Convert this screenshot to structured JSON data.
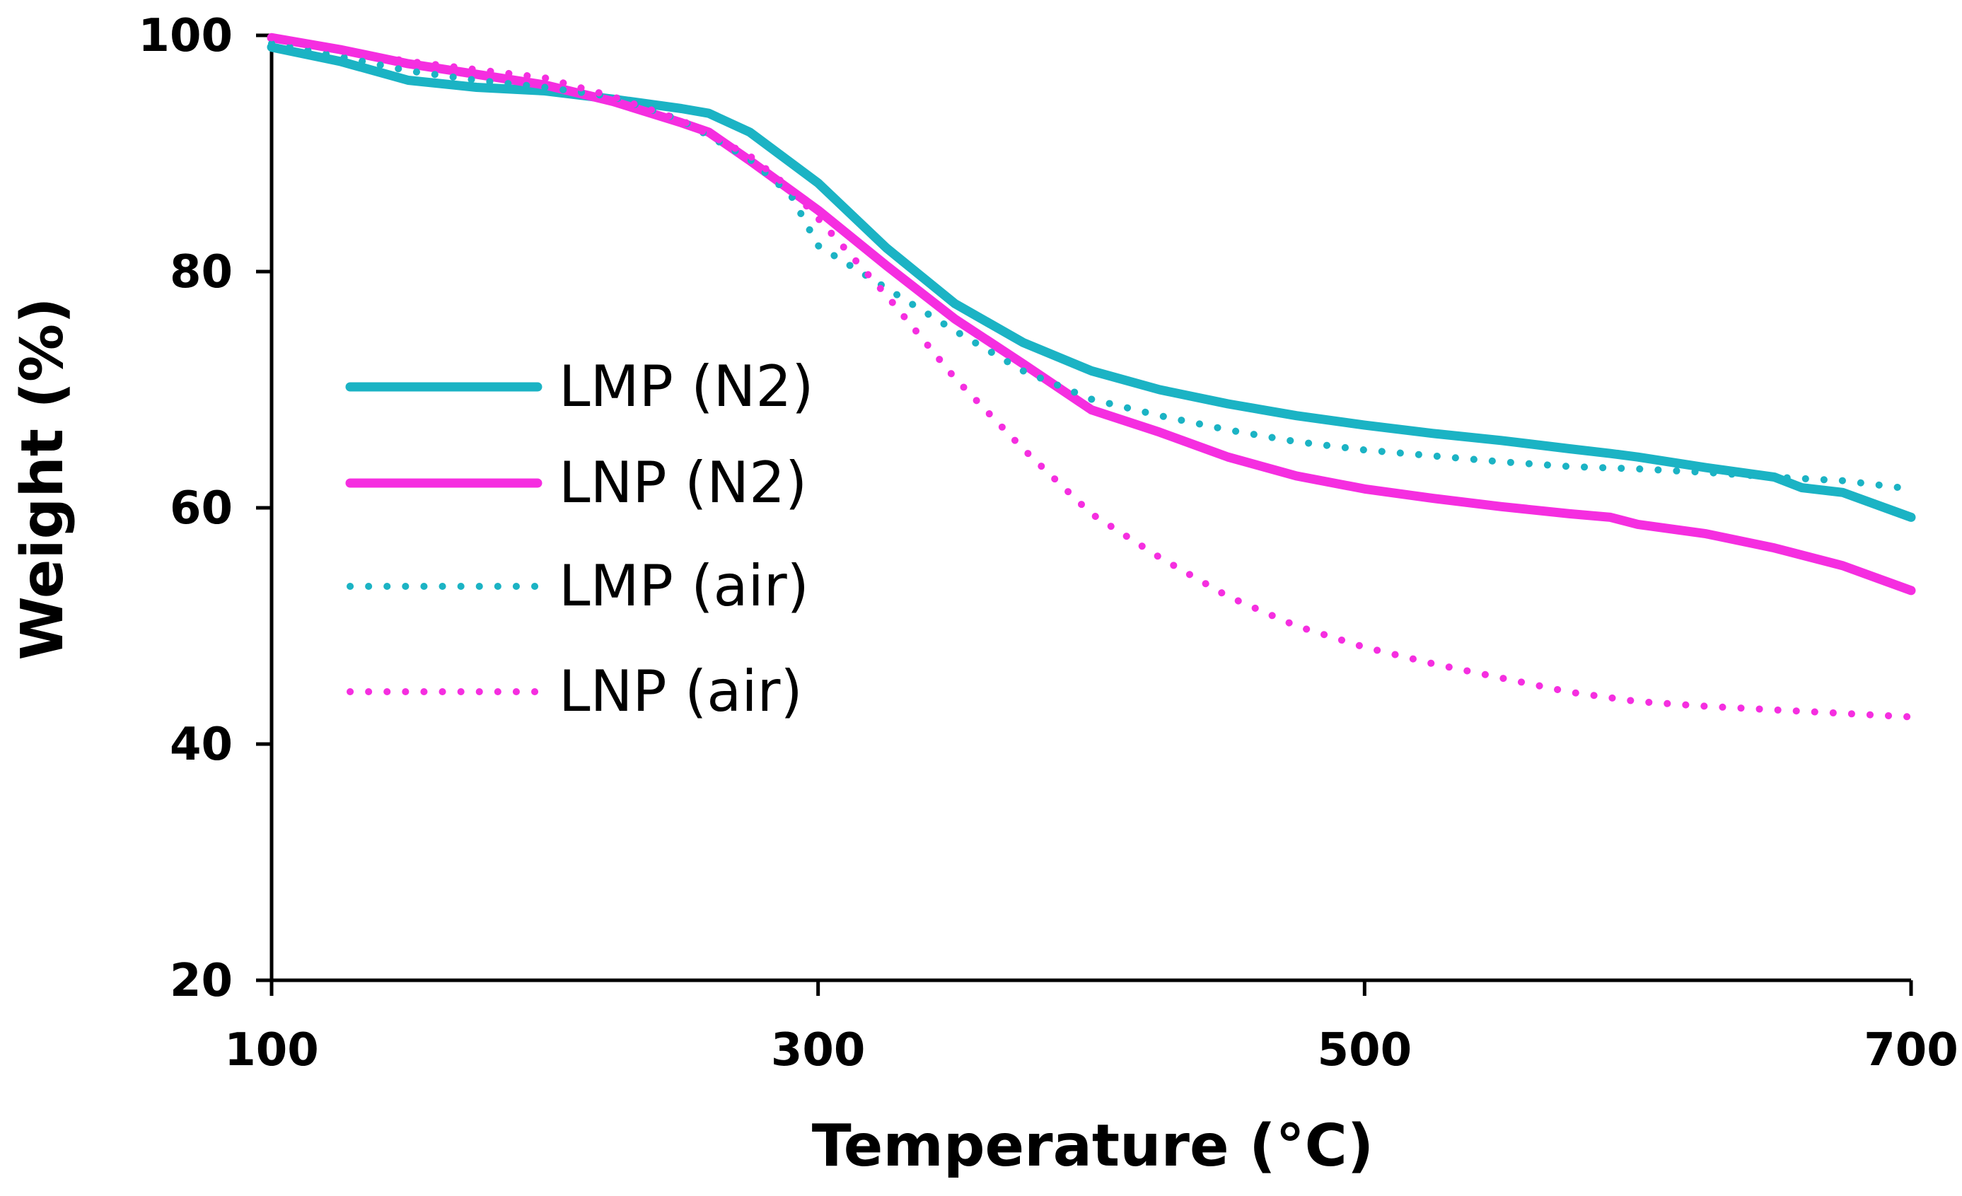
{
  "chart_data": {
    "type": "line",
    "title": "",
    "xlabel": "Temperature (°C)",
    "ylabel": "Weight (%)",
    "xlim": [
      100,
      700
    ],
    "ylim": [
      20,
      100
    ],
    "x_ticks": [
      100,
      300,
      500,
      700
    ],
    "y_ticks": [
      20,
      40,
      60,
      80,
      100
    ],
    "legend": {
      "placement": "left",
      "order": [
        "LMP (N2)",
        "LNP (N2)",
        "LMP (air)",
        "LNP (air)"
      ]
    },
    "grid": false,
    "colors": {
      "LMP": "#1BB3C4",
      "LNP": "#F52EE0"
    },
    "series": [
      {
        "name": "LMP (N2)",
        "color": "#1BB3C4",
        "style": "solid",
        "points": [
          [
            100,
            99
          ],
          [
            125,
            97.8
          ],
          [
            150,
            96.2
          ],
          [
            175,
            95.6
          ],
          [
            200,
            95.3
          ],
          [
            225,
            94.6
          ],
          [
            250,
            93.8
          ],
          [
            260,
            93.4
          ],
          [
            275,
            91.8
          ],
          [
            300,
            87.5
          ],
          [
            325,
            82
          ],
          [
            350,
            77.3
          ],
          [
            375,
            74
          ],
          [
            400,
            71.6
          ],
          [
            425,
            70
          ],
          [
            450,
            68.8
          ],
          [
            475,
            67.8
          ],
          [
            500,
            67
          ],
          [
            525,
            66.3
          ],
          [
            550,
            65.7
          ],
          [
            575,
            65
          ],
          [
            590,
            64.6
          ],
          [
            600,
            64.3
          ],
          [
            625,
            63.4
          ],
          [
            650,
            62.6
          ],
          [
            660,
            61.7
          ],
          [
            675,
            61.3
          ],
          [
            700,
            59.2
          ]
        ]
      },
      {
        "name": "LNP (N2)",
        "color": "#F52EE0",
        "style": "solid",
        "points": [
          [
            100,
            99.8
          ],
          [
            125,
            98.8
          ],
          [
            150,
            97.6
          ],
          [
            175,
            96.7
          ],
          [
            200,
            95.8
          ],
          [
            225,
            94.4
          ],
          [
            250,
            92.6
          ],
          [
            260,
            91.8
          ],
          [
            275,
            89.4
          ],
          [
            300,
            85.2
          ],
          [
            325,
            80.5
          ],
          [
            350,
            76
          ],
          [
            375,
            72.2
          ],
          [
            400,
            68.3
          ],
          [
            425,
            66.4
          ],
          [
            450,
            64.3
          ],
          [
            475,
            62.7
          ],
          [
            500,
            61.6
          ],
          [
            525,
            60.8
          ],
          [
            550,
            60.1
          ],
          [
            575,
            59.5
          ],
          [
            590,
            59.2
          ],
          [
            600,
            58.6
          ],
          [
            625,
            57.8
          ],
          [
            650,
            56.6
          ],
          [
            675,
            55.1
          ],
          [
            700,
            53
          ]
        ]
      },
      {
        "name": "LMP (air)",
        "color": "#1BB3C4",
        "style": "dotted",
        "points": [
          [
            100,
            99.3
          ],
          [
            125,
            98.2
          ],
          [
            150,
            97
          ],
          [
            175,
            96.2
          ],
          [
            200,
            95.6
          ],
          [
            225,
            94.8
          ],
          [
            250,
            92.8
          ],
          [
            275,
            89.5
          ],
          [
            290,
            86.5
          ],
          [
            300,
            82.2
          ],
          [
            325,
            78.6
          ],
          [
            350,
            75
          ],
          [
            375,
            71.6
          ],
          [
            400,
            69.2
          ],
          [
            425,
            67.8
          ],
          [
            450,
            66.6
          ],
          [
            475,
            65.6
          ],
          [
            500,
            64.9
          ],
          [
            525,
            64.4
          ],
          [
            550,
            63.9
          ],
          [
            575,
            63.5
          ],
          [
            600,
            63.3
          ],
          [
            625,
            63
          ],
          [
            650,
            62.6
          ],
          [
            675,
            62.3
          ],
          [
            700,
            61.6
          ]
        ]
      },
      {
        "name": "LNP (air)",
        "color": "#F52EE0",
        "style": "dotted",
        "points": [
          [
            100,
            99.8
          ],
          [
            125,
            98.7
          ],
          [
            150,
            97.8
          ],
          [
            175,
            97.1
          ],
          [
            200,
            96.4
          ],
          [
            225,
            94.8
          ],
          [
            250,
            92.8
          ],
          [
            275,
            89.8
          ],
          [
            290,
            87
          ],
          [
            300,
            84.5
          ],
          [
            325,
            78
          ],
          [
            350,
            71
          ],
          [
            375,
            65
          ],
          [
            400,
            59.5
          ],
          [
            425,
            55.8
          ],
          [
            450,
            52.5
          ],
          [
            475,
            50
          ],
          [
            500,
            48.2
          ],
          [
            525,
            46.8
          ],
          [
            550,
            45.6
          ],
          [
            575,
            44.4
          ],
          [
            600,
            43.6
          ],
          [
            625,
            43.2
          ],
          [
            650,
            42.9
          ],
          [
            675,
            42.6
          ],
          [
            700,
            42.3
          ]
        ]
      }
    ]
  }
}
